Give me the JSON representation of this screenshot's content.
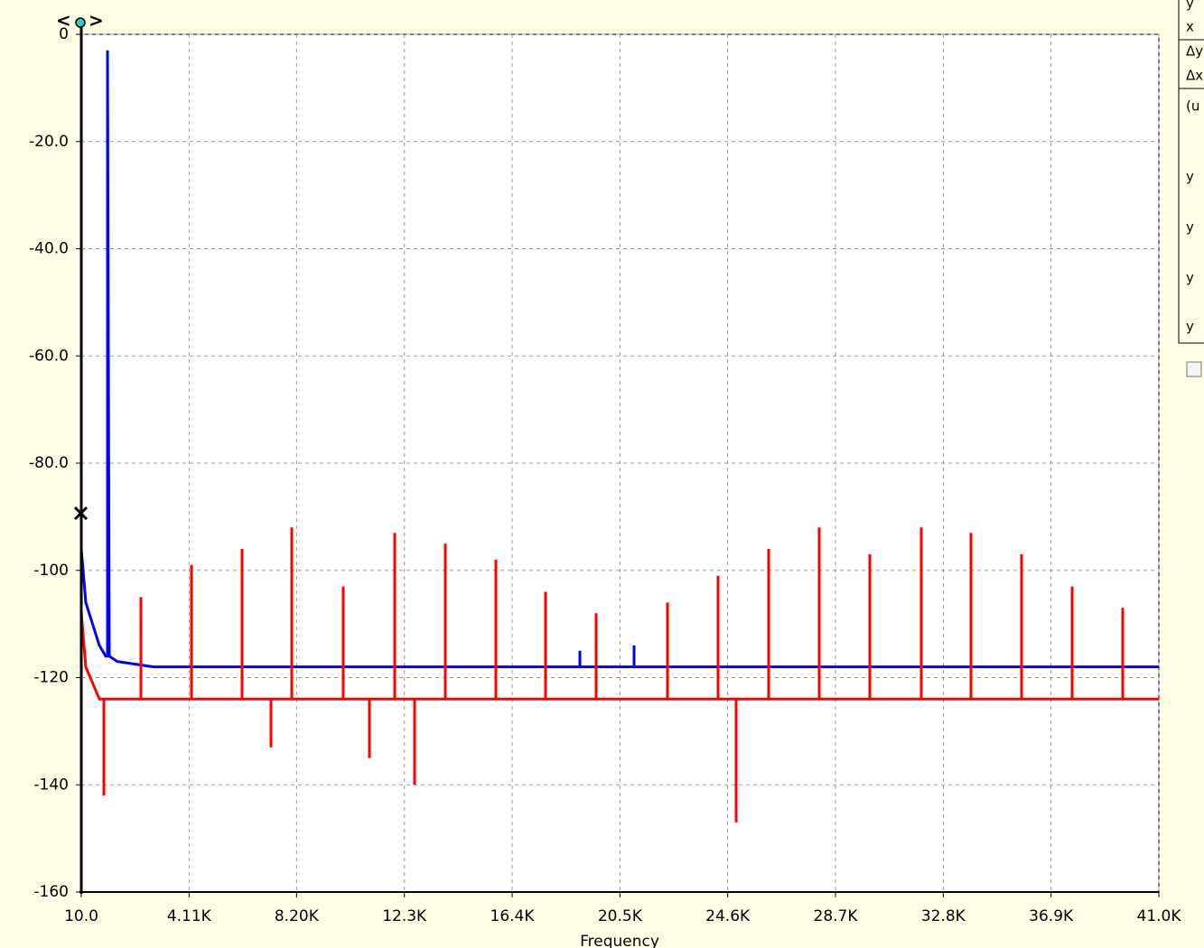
{
  "chart_data": {
    "type": "line",
    "x_label": "Frequency",
    "xlim": [
      10,
      41000
    ],
    "xticks": [
      {
        "value": 10,
        "label": "10.0"
      },
      {
        "value": 4110,
        "label": "4.11K"
      },
      {
        "value": 8200,
        "label": "8.20K"
      },
      {
        "value": 12300,
        "label": "12.3K"
      },
      {
        "value": 16400,
        "label": "16.4K"
      },
      {
        "value": 20500,
        "label": "20.5K"
      },
      {
        "value": 24600,
        "label": "24.6K"
      },
      {
        "value": 28700,
        "label": "28.7K"
      },
      {
        "value": 32800,
        "label": "32.8K"
      },
      {
        "value": 36900,
        "label": "36.9K"
      },
      {
        "value": 41000,
        "label": "41.0K"
      }
    ],
    "ylim": [
      -160,
      0
    ],
    "yticks": [
      0,
      {
        "value": -20,
        "label": "-20.0"
      },
      {
        "value": -40,
        "label": "-40.0"
      },
      {
        "value": -60,
        "label": "-60.0"
      },
      {
        "value": -80,
        "label": "-80.0"
      },
      -100,
      -120,
      -140,
      -160
    ],
    "grid": true,
    "series": [
      {
        "color": "#0000ff",
        "x": [
          10,
          182,
          697,
          938,
          1006,
          1006,
          1075,
          1384,
          2759,
          18976,
          18976,
          18976,
          21038,
          21038,
          21038,
          41000
        ],
        "values": [
          -96,
          -106,
          -114,
          -116,
          -116,
          -3,
          -116,
          -117,
          -118,
          -118,
          -115,
          -118,
          -118,
          -114,
          -118,
          -118
        ]
      },
      {
        "color": "#ff0000",
        "x": [
          10,
          182,
          697,
          869,
          869,
          869,
          2278,
          2278,
          2278,
          4202,
          4202,
          4202,
          6126,
          6126,
          6126,
          7225,
          7225,
          7225,
          8016,
          8016,
          8016,
          9974,
          9974,
          9974,
          10971,
          10971,
          10971,
          11933,
          11933,
          11933,
          12688,
          12688,
          12688,
          13857,
          13857,
          13857,
          15781,
          15781,
          15781,
          17671,
          17671,
          17671,
          19595,
          19595,
          19595,
          22309,
          22309,
          22309,
          24233,
          24233,
          24233,
          24920,
          24920,
          24920,
          26157,
          26157,
          26157,
          28081,
          28081,
          28081,
          30005,
          30005,
          30005,
          31964,
          31964,
          31964,
          33854,
          33854,
          33854,
          35778,
          35778,
          35778,
          37702,
          37702,
          37702,
          39626,
          39626,
          39626,
          41000
        ],
        "values": [
          -108,
          -118,
          -124,
          -124,
          -142,
          -124,
          -124,
          -105,
          -124,
          -124,
          -99,
          -124,
          -124,
          -96,
          -124,
          -124,
          -133,
          -124,
          -124,
          -92,
          -124,
          -124,
          -103,
          -124,
          -124,
          -135,
          -124,
          -124,
          -93,
          -124,
          -124,
          -140,
          -124,
          -124,
          -95,
          -124,
          -124,
          -98,
          -124,
          -124,
          -104,
          -124,
          -124,
          -108,
          -124,
          -124,
          -106,
          -124,
          -124,
          -101,
          -124,
          -124,
          -147,
          -124,
          -124,
          -96,
          -124,
          -124,
          -92,
          -124,
          -124,
          -97,
          -124,
          -124,
          -92,
          -124,
          -124,
          -93,
          -124,
          -124,
          -97,
          -124,
          -124,
          -103,
          -124,
          -124,
          -107,
          -124,
          -124
        ]
      }
    ]
  },
  "panel": {
    "labels": [
      "y",
      "x",
      "Δy",
      "Δx",
      "(u",
      "y",
      "y",
      "y",
      "y"
    ]
  }
}
